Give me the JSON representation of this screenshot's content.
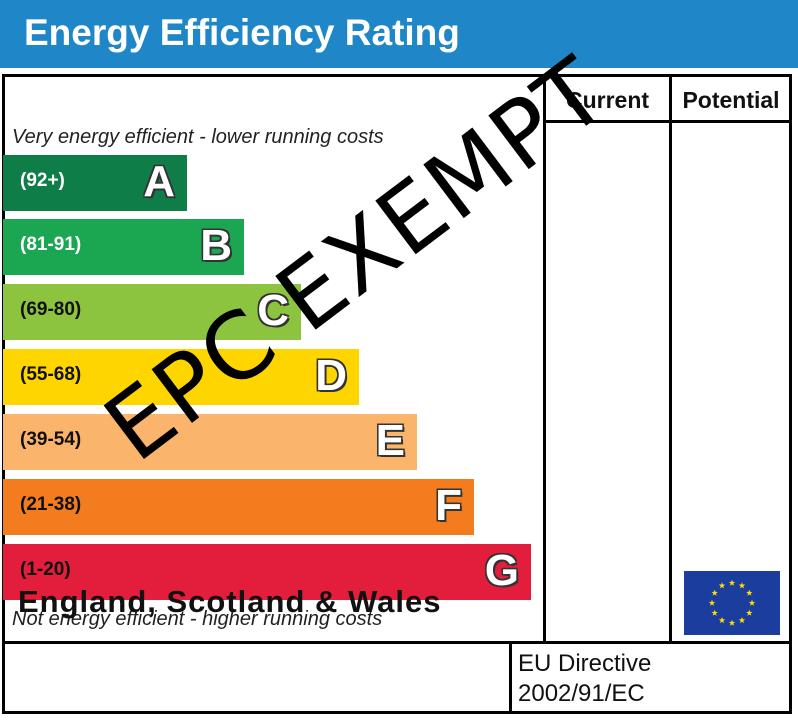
{
  "header": {
    "title": "Energy Efficiency Rating"
  },
  "columns": {
    "current": "Current",
    "potential": "Potential"
  },
  "notes": {
    "top": "Very energy efficient - lower running costs",
    "bottom": "Not energy efficient - higher running costs"
  },
  "bands": [
    {
      "range": "(92+)",
      "letter": "A",
      "color": "#0f7d48",
      "text_color": "#ffffff"
    },
    {
      "range": "(81-91)",
      "letter": "B",
      "color": "#1ba652",
      "text_color": "#ffffff"
    },
    {
      "range": "(69-80)",
      "letter": "C",
      "color": "#8dc43f",
      "text_color": "#111111"
    },
    {
      "range": "(55-68)",
      "letter": "D",
      "color": "#ffd500",
      "text_color": "#111111"
    },
    {
      "range": "(39-54)",
      "letter": "E",
      "color": "#fbb46c",
      "text_color": "#111111"
    },
    {
      "range": "(21-38)",
      "letter": "F",
      "color": "#f27c1e",
      "text_color": "#111111"
    },
    {
      "range": "(1-20)",
      "letter": "G",
      "color": "#e31d3c",
      "text_color": "#111111"
    }
  ],
  "footer": {
    "country": "England, Scotland & Wales",
    "directive_line1": "EU Directive",
    "directive_line2": "2002/91/EC",
    "flag_icon": "eu-flag-icon"
  },
  "stamp": {
    "text": "EPC EXEMPT"
  }
}
